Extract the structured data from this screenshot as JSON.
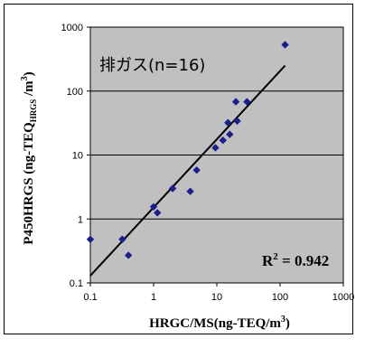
{
  "chart_data": {
    "type": "scatter",
    "xscale": "log",
    "yscale": "log",
    "xlim": [
      0.1,
      1000
    ],
    "ylim": [
      0.1,
      1000
    ],
    "xticks": [
      "0.1",
      "1",
      "10",
      "100",
      "1000"
    ],
    "yticks": [
      "0.1",
      "1",
      "10",
      "100",
      "1000"
    ],
    "xlabel": "HRGC/MS(ng-TEQ/m3)",
    "ylabel": "P450HRGS (ng-TEQHRGS/m3)",
    "annotation": "排ガス(n=16)",
    "r_squared_label": "R2 = 0.942",
    "grid": "horizontal",
    "plot_background": "#c0c0c0",
    "marker_color": "#1a1f8c",
    "points": [
      {
        "x": 0.1,
        "y": 0.48
      },
      {
        "x": 0.32,
        "y": 0.48
      },
      {
        "x": 0.4,
        "y": 0.27
      },
      {
        "x": 1.0,
        "y": 1.55
      },
      {
        "x": 1.15,
        "y": 1.25
      },
      {
        "x": 2.0,
        "y": 3.0
      },
      {
        "x": 3.8,
        "y": 2.7
      },
      {
        "x": 4.8,
        "y": 5.8
      },
      {
        "x": 9.5,
        "y": 13.0
      },
      {
        "x": 12.5,
        "y": 17.0
      },
      {
        "x": 15.0,
        "y": 32.0
      },
      {
        "x": 16.0,
        "y": 21.0
      },
      {
        "x": 20.0,
        "y": 68.0
      },
      {
        "x": 21.0,
        "y": 34.0
      },
      {
        "x": 30.0,
        "y": 68.0
      },
      {
        "x": 120.0,
        "y": 530.0
      }
    ],
    "trendline": {
      "x": [
        0.1,
        120
      ],
      "y": [
        0.13,
        250
      ]
    }
  }
}
